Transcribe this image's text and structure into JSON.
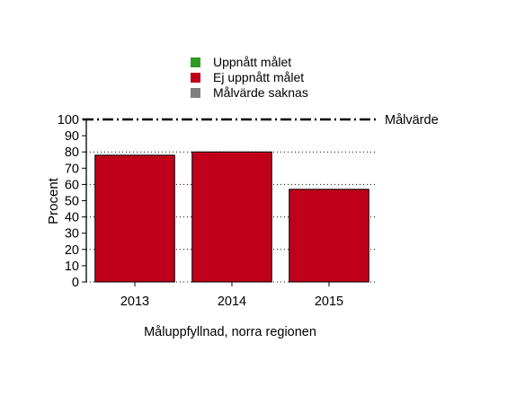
{
  "chart_data": {
    "type": "bar",
    "categories": [
      "2013",
      "2014",
      "2015"
    ],
    "values": [
      78,
      80,
      57
    ],
    "ylabel": "Procent",
    "xlabel": "Måluppfyllnad, norra regionen",
    "ylim": [
      0,
      100
    ],
    "yticks": [
      0,
      10,
      20,
      30,
      40,
      50,
      60,
      70,
      80,
      90,
      100
    ],
    "target": {
      "value": 100,
      "label": "Målvärde"
    },
    "grid": true,
    "legend_position": "top",
    "legend": [
      {
        "label": "Uppnått målet",
        "color": "#2e9a21"
      },
      {
        "label": "Ej uppnått målet",
        "color": "#c0001a"
      },
      {
        "label": "Målvärde saknas",
        "color": "#808080"
      }
    ],
    "bar_color": "#c0001a"
  }
}
